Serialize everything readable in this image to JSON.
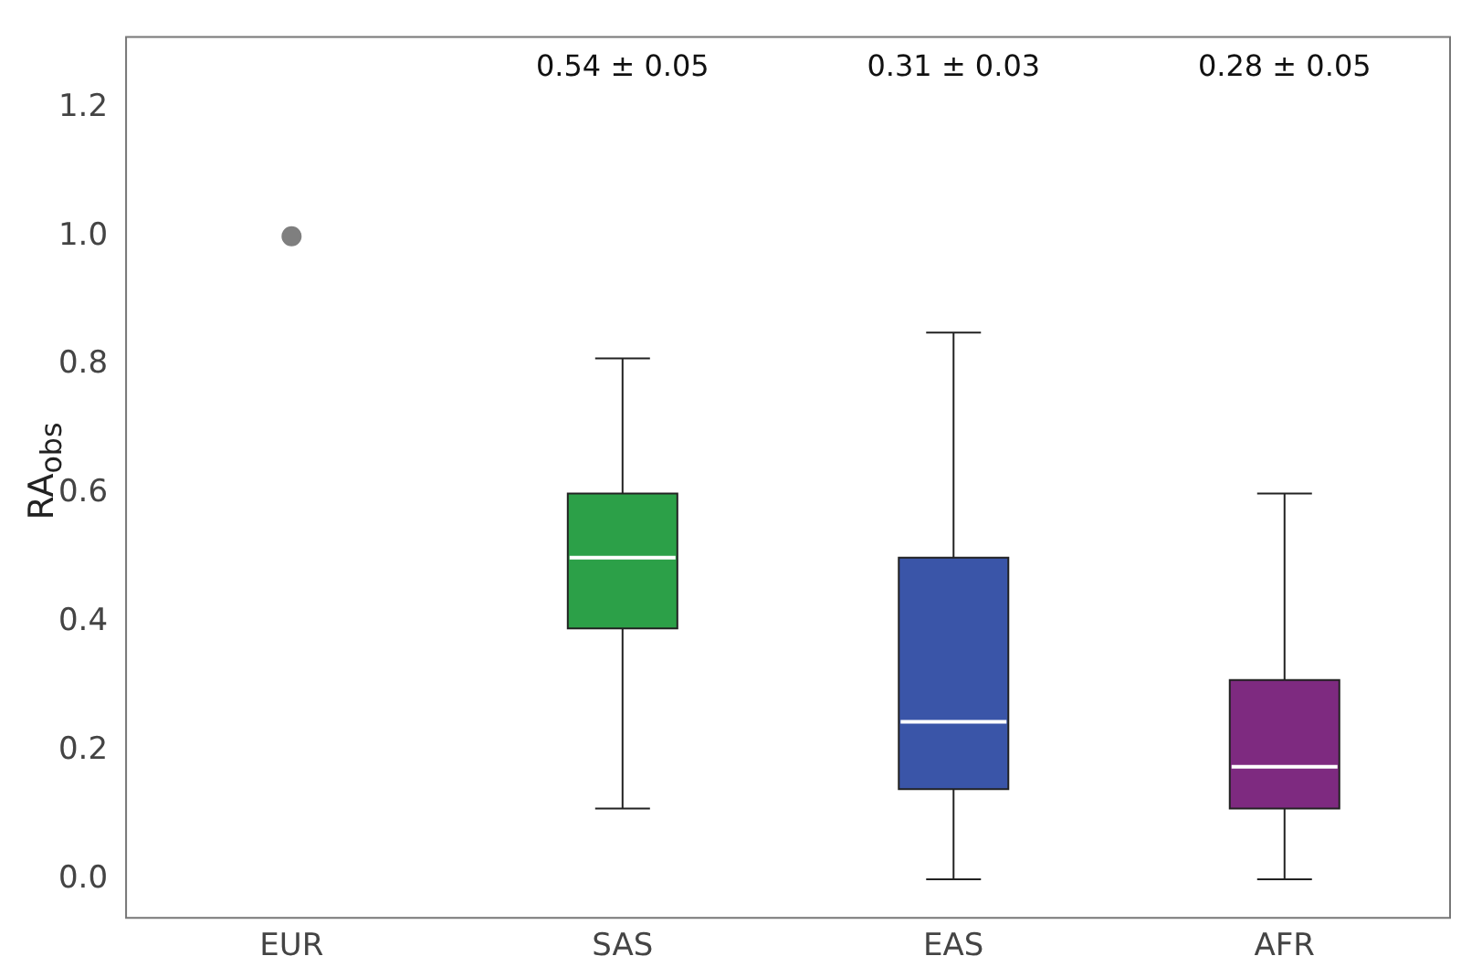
{
  "chart_data": {
    "type": "box",
    "ylabel": "RA$_{obs}$",
    "categories": [
      "EUR",
      "SAS",
      "EAS",
      "AFR"
    ],
    "colors": [
      null,
      "#2ca048",
      "#3a55a8",
      "#7e2a80"
    ],
    "boxes": [
      null,
      {
        "low": 0.11,
        "q1": 0.39,
        "median": 0.5,
        "q3": 0.6,
        "high": 0.81
      },
      {
        "low": 0,
        "q1": 0.14,
        "median": 0.245,
        "q3": 0.5,
        "high": 0.85
      },
      {
        "low": 0,
        "q1": 0.11,
        "median": 0.175,
        "q3": 0.31,
        "high": 0.6
      }
    ],
    "series": [
      {
        "type": "scatter",
        "x": [
          "EUR"
        ],
        "values": [
          1.0
        ],
        "color": "#7f7f7f"
      }
    ],
    "marker": "circle",
    "ylim": [
      -0.06,
      1.31
    ],
    "yticks": [
      {
        "value": 0,
        "label": "0.0"
      },
      0.2,
      0.4,
      0.6,
      0.8,
      {
        "value": 1,
        "label": "1.0"
      },
      1.2
    ],
    "annotations": [
      "0.54 ± 0.05",
      "0.31 ± 0.03",
      "0.28 ± 0.05"
    ],
    "grid": false,
    "legend": false
  }
}
